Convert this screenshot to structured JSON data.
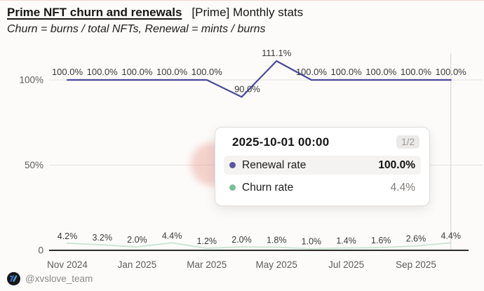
{
  "header": {
    "title": "Prime NFT churn and renewals",
    "title_suffix": "[Prime] Monthly stats",
    "subtitle": "Churn = burns / total NFTs, Renewal = mints / burns"
  },
  "chart_data": {
    "type": "line",
    "x": [
      "2024-11-01",
      "2024-12-01",
      "2025-01-01",
      "2025-02-01",
      "2025-03-01",
      "2025-04-01",
      "2025-05-01",
      "2025-06-01",
      "2025-07-01",
      "2025-08-01",
      "2025-09-01",
      "2025-10-01"
    ],
    "x_tick_labels": [
      "Nov 2024",
      "Jan 2025",
      "Mar 2025",
      "May 2025",
      "Jul 2025",
      "Sep 2025"
    ],
    "x_tick_indices": [
      0,
      2,
      4,
      6,
      8,
      10
    ],
    "y_ticks": [
      {
        "label": "100%",
        "value": 100
      },
      {
        "label": "50%",
        "value": 50
      },
      {
        "label": "0",
        "value": 0
      }
    ],
    "ylim": [
      0,
      115
    ],
    "grid": true,
    "legend": false,
    "crosshair_index": 11,
    "series": [
      {
        "name": "Renewal rate",
        "color": "#4a4a9c",
        "values": [
          100.0,
          100.0,
          100.0,
          100.0,
          100.0,
          90.0,
          111.1,
          100.0,
          100.0,
          100.0,
          100.0,
          100.0
        ],
        "labels": [
          "100.0%",
          "100.0%",
          "100.0%",
          "100.0%",
          "100.0%",
          "90.0%",
          "111.1%",
          "100.0%",
          "100.0%",
          "100.0%",
          "100.0%",
          "100.0%"
        ]
      },
      {
        "name": "Churn rate",
        "color": "#cde5d4",
        "values": [
          4.2,
          3.2,
          2.0,
          4.4,
          1.2,
          2.0,
          1.8,
          1.0,
          1.4,
          1.6,
          2.6,
          4.4
        ],
        "labels": [
          "4.2%",
          "3.2%",
          "2.0%",
          "4.4%",
          "1.2%",
          "2.0%",
          "1.8%",
          "1.0%",
          "1.4%",
          "1.6%",
          "2.6%",
          "4.4%"
        ]
      }
    ]
  },
  "tooltip": {
    "date": "2025-10-01 00:00",
    "page": "1/2",
    "rows": [
      {
        "dot_color": "#5b54a4",
        "label": "Renewal rate",
        "value": "100.0%",
        "highlighted": true
      },
      {
        "dot_color": "#7abf96",
        "label": "Churn rate",
        "value": "4.4%",
        "highlighted": false
      }
    ]
  },
  "footer": {
    "watermark": "@xvslove_team",
    "logo_icon": "xvs-logo-icon"
  },
  "colors": {
    "renewal_line": "#4a4a9c",
    "churn_line": "#cde5d4",
    "grid": "#e4e2e0",
    "axis": "#2e2e2e",
    "crosshair": "#dbd9d7",
    "background": "#fcfbfa",
    "top_border": "#f2d6d1"
  }
}
